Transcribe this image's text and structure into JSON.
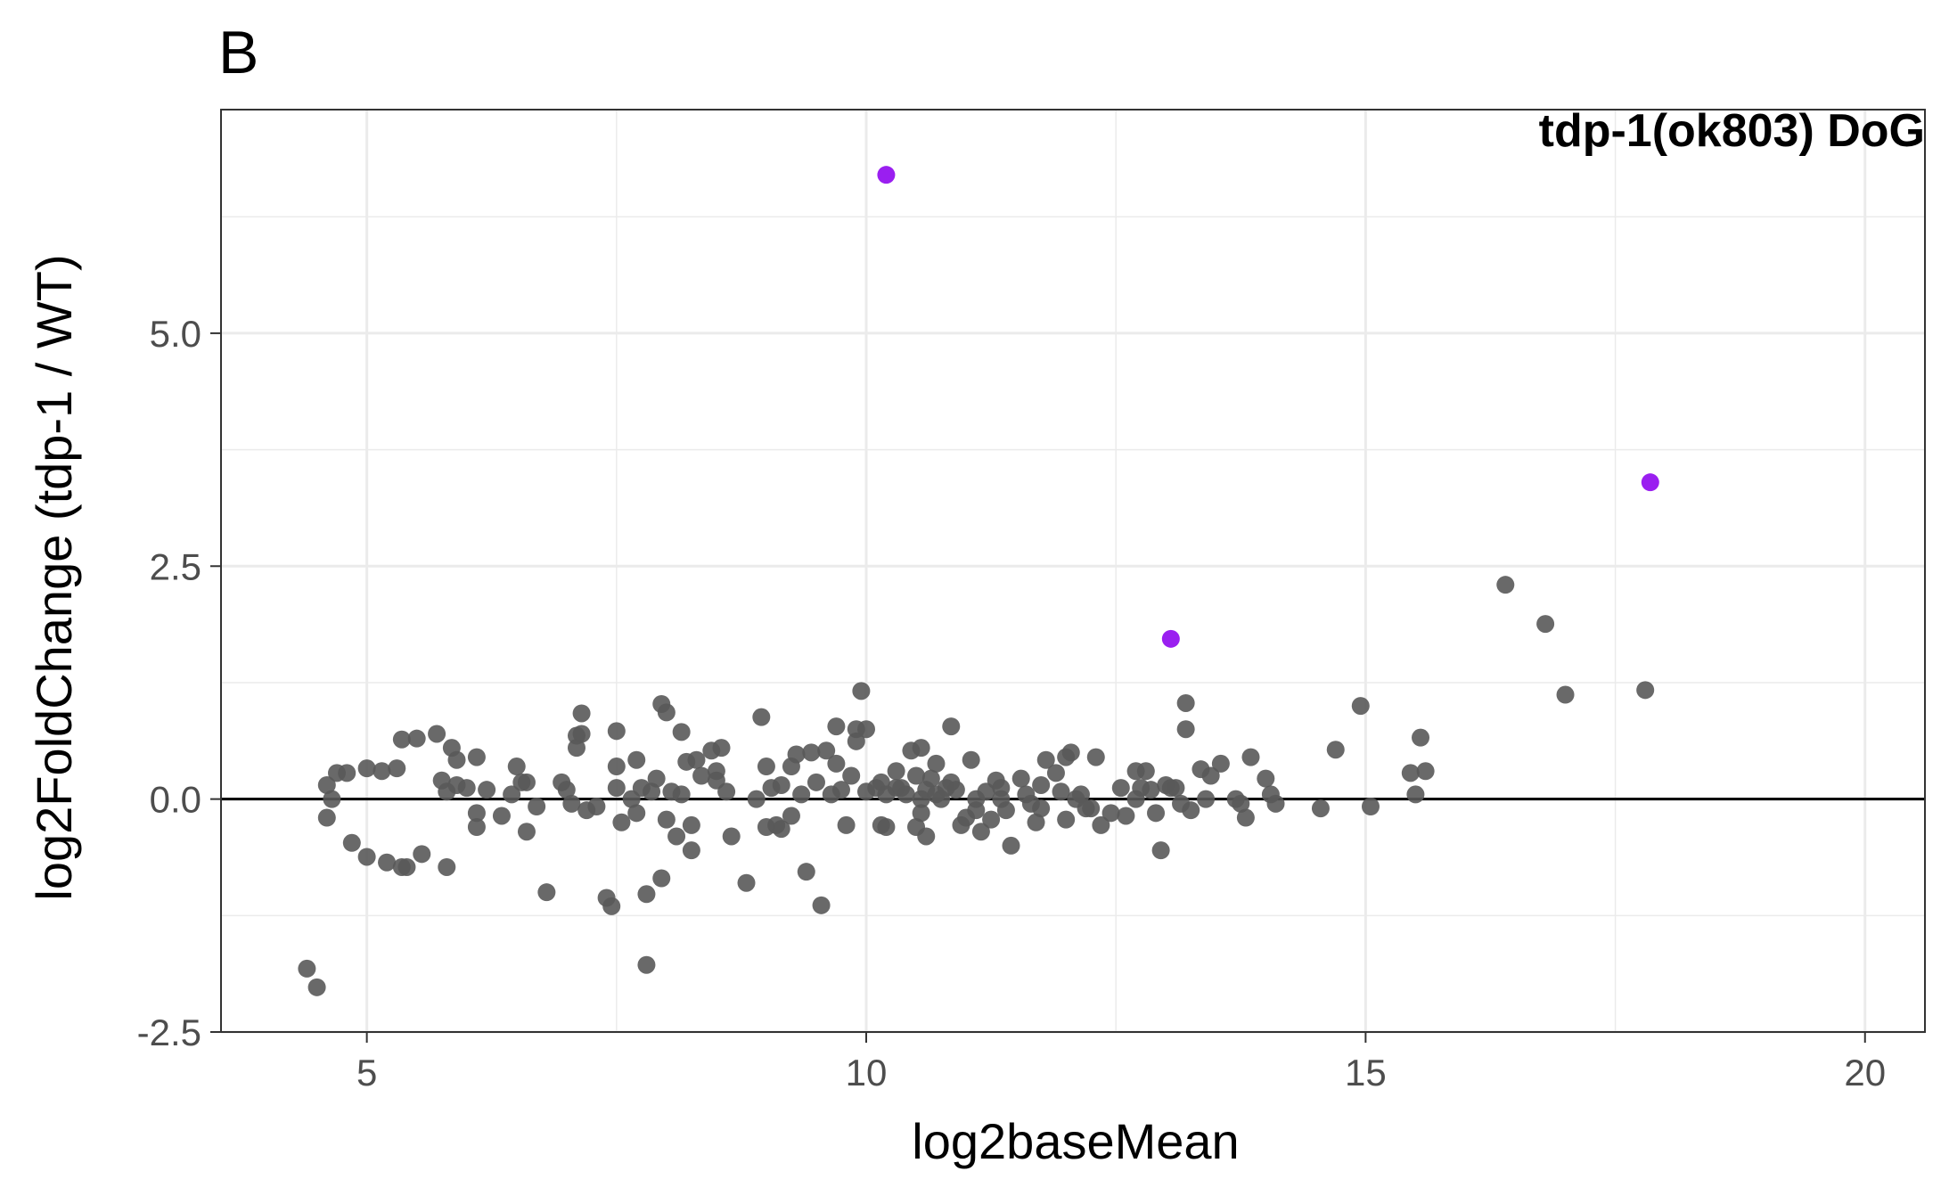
{
  "panel_label": "B",
  "chart_data": {
    "type": "scatter",
    "title": "tdp-1(ok803) DoG",
    "xlabel": "log2baseMean",
    "ylabel": "log2FoldChange (tdp-1 / WT)",
    "xlim": [
      3.54,
      20.6
    ],
    "ylim": [
      -2.5,
      7.4
    ],
    "x_ticks": [
      5,
      10,
      15,
      20
    ],
    "x_tick_labels": [
      "5",
      "10",
      "15",
      "20"
    ],
    "y_ticks": [
      -2.5,
      0.0,
      2.5,
      5.0
    ],
    "y_tick_labels": [
      "-2.5",
      "0.0",
      "2.5",
      "5.0"
    ],
    "grid": true,
    "reference_line_y": 0,
    "colors": {
      "grey_points": "#595959",
      "highlighted_points": "#9a1ff0",
      "grid": "#ebebeb",
      "axis": "#333333"
    },
    "series": [
      {
        "values": [
          [
            4.4,
            -1.82
          ],
          [
            4.5,
            -2.02
          ],
          [
            4.6,
            0.15
          ],
          [
            4.6,
            -0.2
          ],
          [
            4.65,
            0.0
          ],
          [
            4.7,
            0.28
          ],
          [
            4.8,
            0.28
          ],
          [
            4.85,
            -0.47
          ],
          [
            5.0,
            -0.62
          ],
          [
            5.0,
            0.33
          ],
          [
            5.15,
            0.3
          ],
          [
            5.2,
            -0.68
          ],
          [
            5.3,
            0.33
          ],
          [
            5.35,
            0.64
          ],
          [
            5.35,
            -0.73
          ],
          [
            5.4,
            -0.73
          ],
          [
            5.5,
            0.65
          ],
          [
            5.55,
            -0.59
          ],
          [
            5.7,
            0.7
          ],
          [
            5.75,
            0.2
          ],
          [
            5.8,
            -0.73
          ],
          [
            5.8,
            0.08
          ],
          [
            5.85,
            0.55
          ],
          [
            5.9,
            0.15
          ],
          [
            5.9,
            0.42
          ],
          [
            6.0,
            0.12
          ],
          [
            6.1,
            0.45
          ],
          [
            6.1,
            -0.15
          ],
          [
            6.1,
            -0.3
          ],
          [
            6.2,
            0.1
          ],
          [
            6.35,
            -0.18
          ],
          [
            6.45,
            0.05
          ],
          [
            6.5,
            0.35
          ],
          [
            6.55,
            0.18
          ],
          [
            6.6,
            0.18
          ],
          [
            6.6,
            -0.35
          ],
          [
            6.7,
            -0.08
          ],
          [
            6.8,
            -1.0
          ],
          [
            6.95,
            0.18
          ],
          [
            7.0,
            0.1
          ],
          [
            7.05,
            -0.05
          ],
          [
            7.1,
            0.55
          ],
          [
            7.1,
            0.68
          ],
          [
            7.15,
            0.92
          ],
          [
            7.15,
            0.7
          ],
          [
            7.2,
            -0.12
          ],
          [
            7.3,
            -0.08
          ],
          [
            7.4,
            -1.06
          ],
          [
            7.45,
            -1.15
          ],
          [
            7.5,
            0.12
          ],
          [
            7.5,
            0.35
          ],
          [
            7.5,
            0.73
          ],
          [
            7.55,
            -0.25
          ],
          [
            7.65,
            0.0
          ],
          [
            7.7,
            -0.15
          ],
          [
            7.7,
            0.42
          ],
          [
            7.75,
            0.12
          ],
          [
            7.8,
            -1.02
          ],
          [
            7.8,
            -1.78
          ],
          [
            7.85,
            0.08
          ],
          [
            7.9,
            0.22
          ],
          [
            7.95,
            1.02
          ],
          [
            7.95,
            -0.85
          ],
          [
            8.0,
            0.93
          ],
          [
            8.0,
            -0.22
          ],
          [
            8.05,
            0.08
          ],
          [
            8.1,
            -0.4
          ],
          [
            8.15,
            0.05
          ],
          [
            8.15,
            0.72
          ],
          [
            8.2,
            0.4
          ],
          [
            8.25,
            -0.55
          ],
          [
            8.25,
            -0.28
          ],
          [
            8.3,
            0.42
          ],
          [
            8.35,
            0.25
          ],
          [
            8.45,
            0.52
          ],
          [
            8.5,
            0.3
          ],
          [
            8.5,
            0.2
          ],
          [
            8.55,
            0.55
          ],
          [
            8.6,
            0.08
          ],
          [
            8.65,
            -0.4
          ],
          [
            8.8,
            -0.9
          ],
          [
            8.9,
            0.0
          ],
          [
            8.95,
            0.88
          ],
          [
            9.0,
            -0.3
          ],
          [
            9.0,
            0.35
          ],
          [
            9.05,
            0.12
          ],
          [
            9.1,
            -0.28
          ],
          [
            9.15,
            0.15
          ],
          [
            9.15,
            -0.32
          ],
          [
            9.25,
            0.35
          ],
          [
            9.25,
            -0.18
          ],
          [
            9.3,
            0.48
          ],
          [
            9.35,
            0.05
          ],
          [
            9.4,
            -0.78
          ],
          [
            9.45,
            0.5
          ],
          [
            9.5,
            0.18
          ],
          [
            9.55,
            -1.14
          ],
          [
            9.6,
            0.52
          ],
          [
            9.65,
            0.05
          ],
          [
            9.7,
            0.78
          ],
          [
            9.7,
            0.38
          ],
          [
            9.75,
            0.1
          ],
          [
            9.8,
            -0.28
          ],
          [
            9.85,
            0.25
          ],
          [
            9.9,
            0.75
          ],
          [
            9.9,
            0.62
          ],
          [
            9.95,
            1.16
          ],
          [
            10.0,
            0.08
          ],
          [
            10.0,
            0.75
          ],
          [
            10.1,
            0.12
          ],
          [
            10.15,
            0.18
          ],
          [
            10.15,
            -0.28
          ],
          [
            10.2,
            0.05
          ],
          [
            10.2,
            -0.3
          ],
          [
            10.3,
            0.3
          ],
          [
            10.3,
            0.12
          ],
          [
            10.35,
            0.12
          ],
          [
            10.4,
            0.05
          ],
          [
            10.45,
            0.52
          ],
          [
            10.5,
            0.25
          ],
          [
            10.5,
            -0.3
          ],
          [
            10.55,
            0.55
          ],
          [
            10.55,
            0.0
          ],
          [
            10.55,
            -0.15
          ],
          [
            10.6,
            0.1
          ],
          [
            10.6,
            -0.4
          ],
          [
            10.65,
            0.22
          ],
          [
            10.7,
            0.38
          ],
          [
            10.7,
            0.05
          ],
          [
            10.75,
            0.0
          ],
          [
            10.8,
            0.12
          ],
          [
            10.85,
            0.78
          ],
          [
            10.85,
            0.18
          ],
          [
            10.9,
            0.1
          ],
          [
            10.95,
            -0.28
          ],
          [
            11.0,
            -0.2
          ],
          [
            11.05,
            0.42
          ],
          [
            11.1,
            0.0
          ],
          [
            11.1,
            -0.12
          ],
          [
            11.15,
            -0.35
          ],
          [
            11.2,
            0.08
          ],
          [
            11.25,
            -0.22
          ],
          [
            11.3,
            0.2
          ],
          [
            11.35,
            0.12
          ],
          [
            11.35,
            0.0
          ],
          [
            11.4,
            -0.12
          ],
          [
            11.45,
            -0.5
          ],
          [
            11.55,
            0.22
          ],
          [
            11.6,
            0.05
          ],
          [
            11.65,
            -0.05
          ],
          [
            11.7,
            -0.25
          ],
          [
            11.75,
            0.15
          ],
          [
            11.75,
            -0.1
          ],
          [
            11.8,
            0.42
          ],
          [
            11.9,
            0.28
          ],
          [
            11.95,
            0.08
          ],
          [
            12.0,
            0.45
          ],
          [
            12.0,
            -0.22
          ],
          [
            12.05,
            0.5
          ],
          [
            12.1,
            0.0
          ],
          [
            12.15,
            0.05
          ],
          [
            12.2,
            -0.1
          ],
          [
            12.25,
            -0.1
          ],
          [
            12.3,
            0.45
          ],
          [
            12.35,
            -0.28
          ],
          [
            12.45,
            -0.15
          ],
          [
            12.55,
            0.12
          ],
          [
            12.6,
            -0.18
          ],
          [
            12.7,
            0.3
          ],
          [
            12.7,
            0.0
          ],
          [
            12.75,
            0.12
          ],
          [
            12.8,
            0.3
          ],
          [
            12.85,
            0.1
          ],
          [
            12.9,
            -0.15
          ],
          [
            12.95,
            -0.55
          ],
          [
            13.0,
            0.15
          ],
          [
            13.05,
            0.12
          ],
          [
            13.1,
            0.12
          ],
          [
            13.15,
            -0.05
          ],
          [
            13.2,
            0.75
          ],
          [
            13.2,
            1.03
          ],
          [
            13.25,
            -0.12
          ],
          [
            13.35,
            0.32
          ],
          [
            13.4,
            0.0
          ],
          [
            13.45,
            0.25
          ],
          [
            13.55,
            0.38
          ],
          [
            13.7,
            0.0
          ],
          [
            13.75,
            -0.05
          ],
          [
            13.8,
            -0.2
          ],
          [
            13.85,
            0.45
          ],
          [
            14.0,
            0.22
          ],
          [
            14.05,
            0.05
          ],
          [
            14.1,
            -0.05
          ],
          [
            14.55,
            -0.1
          ],
          [
            14.7,
            0.53
          ],
          [
            14.95,
            1.0
          ],
          [
            15.05,
            -0.08
          ],
          [
            15.45,
            0.28
          ],
          [
            15.5,
            0.05
          ],
          [
            15.55,
            0.66
          ],
          [
            15.6,
            0.3
          ],
          [
            16.4,
            2.3
          ],
          [
            16.8,
            1.88
          ],
          [
            17.0,
            1.12
          ],
          [
            17.8,
            1.17
          ]
        ]
      },
      {
        "values": [
          [
            10.2,
            6.7
          ],
          [
            13.05,
            1.72
          ],
          [
            17.85,
            3.4
          ]
        ]
      }
    ]
  }
}
